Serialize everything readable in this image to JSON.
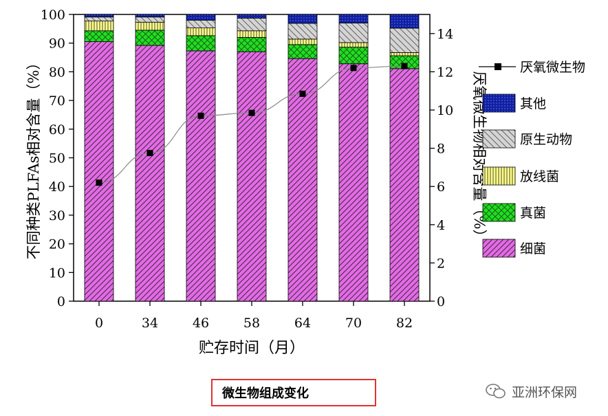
{
  "chart_data": {
    "type": "bar",
    "stacked": true,
    "categories": [
      "0",
      "34",
      "46",
      "58",
      "64",
      "70",
      "82"
    ],
    "xlabel": "贮存时间（月）",
    "ylabel": "不同种类PLFAs相对含量（%）",
    "ylim": [
      0,
      100
    ],
    "yticks": [
      "0",
      "10",
      "20",
      "30",
      "40",
      "50",
      "60",
      "70",
      "80",
      "90",
      "100"
    ],
    "y2label": "厌氧微生物相对含量（%）",
    "y2lim": [
      0,
      15
    ],
    "y2ticks": [
      "0",
      "2",
      "4",
      "6",
      "8",
      "10",
      "12",
      "14"
    ],
    "legend_position": "right",
    "series": [
      {
        "name": "细菌",
        "color": "#e469e6",
        "pattern": "diag",
        "values": [
          90.5,
          89.2,
          87.3,
          87.0,
          84.6,
          82.8,
          81.1
        ]
      },
      {
        "name": "真菌",
        "color": "#22dd22",
        "pattern": "cross",
        "values": [
          3.8,
          5.3,
          5.3,
          5.0,
          4.9,
          5.8,
          4.5
        ]
      },
      {
        "name": "放线菌",
        "color": "#ffff88",
        "pattern": "vert",
        "values": [
          3.4,
          2.8,
          2.7,
          2.3,
          1.9,
          1.6,
          1.1
        ]
      },
      {
        "name": "原生动物",
        "color": "#d4d4d4",
        "pattern": "back",
        "values": [
          1.4,
          1.8,
          2.7,
          4.4,
          5.5,
          6.8,
          8.5
        ]
      },
      {
        "name": "其他",
        "color": "#1020a0",
        "pattern": "dots",
        "values": [
          0.9,
          0.9,
          2.0,
          1.3,
          3.1,
          3.0,
          4.8
        ]
      }
    ],
    "line_series": {
      "name": "厌氧微生物",
      "axis": "right",
      "color": "#000000",
      "values": [
        6.2,
        7.75,
        9.7,
        9.85,
        10.85,
        12.2,
        12.3
      ]
    }
  },
  "caption": "微生物组成变化",
  "watermark": "亚洲环保网"
}
